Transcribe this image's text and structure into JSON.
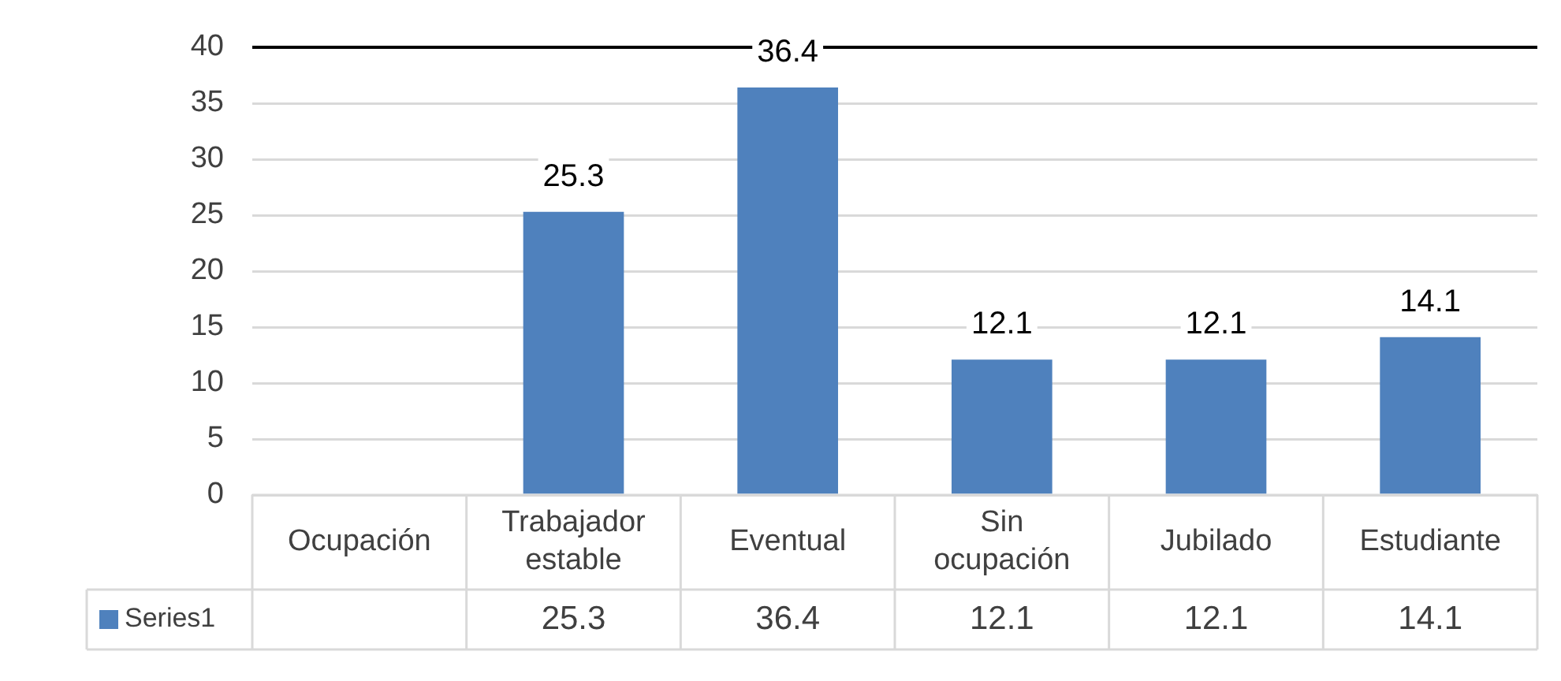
{
  "chart_data": {
    "type": "bar",
    "categories": [
      "Ocupación",
      "Trabajador estable",
      "Eventual",
      "Sin ocupación",
      "Jubilado",
      "Estudiante"
    ],
    "series": [
      {
        "name": "Series1",
        "color": "#4f81bd",
        "values": [
          null,
          25.3,
          36.4,
          12.1,
          12.1,
          14.1
        ],
        "value_labels": [
          null,
          "25.3",
          "36.4",
          "12.1",
          "12.1",
          "14.1"
        ]
      }
    ],
    "ylim": [
      0,
      40
    ],
    "yticks": [
      0,
      5,
      10,
      15,
      20,
      25,
      30,
      35,
      40
    ],
    "grid": "y",
    "legend": "bottom",
    "annotations": [
      "25.3",
      "36.4",
      "12.1",
      "12.1",
      "14.1"
    ],
    "ref_lines": [
      {
        "axis": "y",
        "value": 40,
        "color": "#000000"
      }
    ]
  }
}
